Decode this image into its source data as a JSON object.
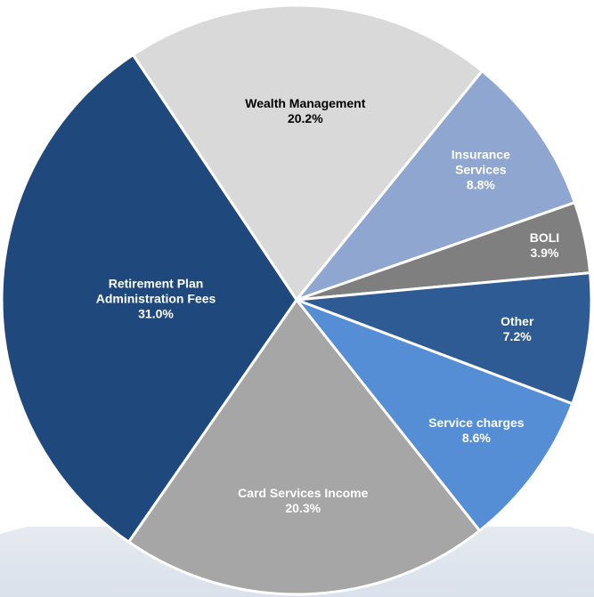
{
  "chart_data": {
    "type": "pie",
    "categories": [
      "Wealth Management",
      "Insurance Services",
      "BOLI",
      "Other",
      "Service charges",
      "Card Services Income",
      "Retirement Plan Administration Fees"
    ],
    "values": [
      20.2,
      8.8,
      3.9,
      7.2,
      8.6,
      20.3,
      31.0
    ],
    "value_labels": [
      "20.2%",
      "8.8%",
      "3.9%",
      "7.2%",
      "8.6%",
      "20.3%",
      "31.0%"
    ],
    "colors": [
      "#d9d9d9",
      "#8ea6d0",
      "#7f7f7f",
      "#2e5b94",
      "#558ed5",
      "#a6a6a6",
      "#1f497d"
    ]
  }
}
